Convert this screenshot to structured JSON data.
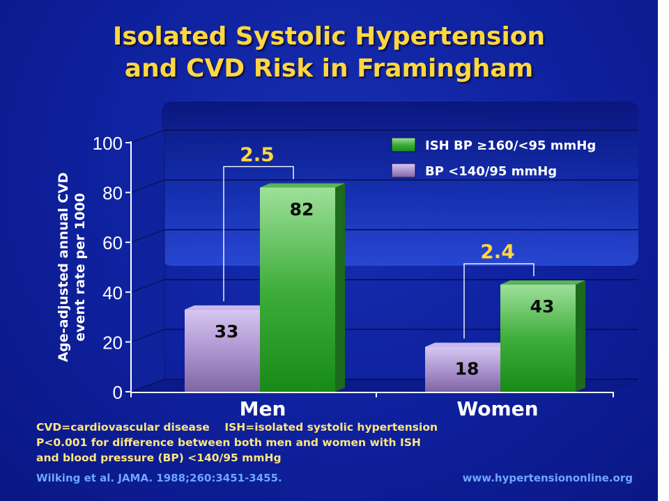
{
  "title_lines": [
    "Isolated Systolic Hypertension",
    "and CVD Risk in Framingham"
  ],
  "footnotes": {
    "line1a": "CVD=cardiovascular disease",
    "line1b": "ISH=isolated systolic hypertension",
    "line2": "P<0.001 for difference between both men and women with ISH",
    "line3": "and blood pressure (BP) <140/95 mmHg"
  },
  "citation": "Wilking et al. JAMA. 1988;260:3451-3455.",
  "website": "www.hypertensiononline.org",
  "colors": {
    "title": "#ffd740",
    "ratio_label": "#ffd740",
    "axis_text": "#ffffff",
    "isb_bar": "#2e9e2e",
    "bp_bar": "#b49ad8",
    "footnote": "#ffe680",
    "citation": "#6fa6ff"
  },
  "chart_data": {
    "type": "bar",
    "categories": [
      "Men",
      "Women"
    ],
    "series": [
      {
        "name": "BP <140/95 mmHg",
        "values": [
          33,
          18
        ]
      },
      {
        "name": "ISH BP ≥160/<95 mmHg",
        "values": [
          82,
          43
        ]
      }
    ],
    "ratios": [
      "2.5",
      "2.4"
    ],
    "ylabel_lines": [
      "Age-adjusted annual CVD",
      "event rate per 1000"
    ],
    "yticks": [
      0,
      20,
      40,
      60,
      80,
      100
    ],
    "ylim": [
      0,
      100
    ],
    "legend_order": [
      1,
      0
    ],
    "legend_position": "top-right",
    "grid": true
  }
}
